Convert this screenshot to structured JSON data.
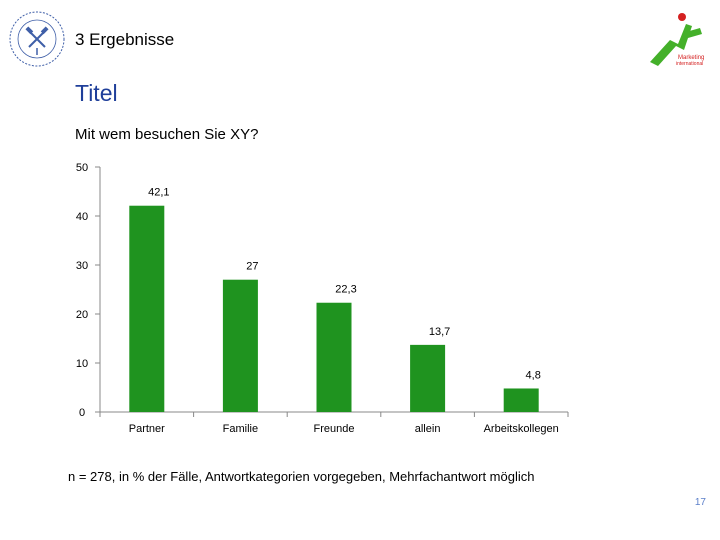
{
  "header": {
    "section_title": "3 Ergebnisse",
    "brand_logo_text": "Marketing international"
  },
  "slide": {
    "title": "Titel",
    "question": "Mit wem besuchen Sie XY?",
    "footnote": "n = 278, in % der Fälle, Antwortkategorien vorgegeben, Mehrfachantwort möglich",
    "page_number": "17"
  },
  "colors": {
    "bar": "#1f931f",
    "title": "#1f3f9a",
    "seal": "#3f5fa8",
    "logo_green": "#44b02a",
    "logo_red": "#d42020"
  },
  "chart_data": {
    "type": "bar",
    "title": "Mit wem besuchen Sie XY?",
    "categories": [
      "Partner",
      "Familie",
      "Freunde",
      "allein",
      "Arbeitskollegen"
    ],
    "values": [
      42.1,
      27,
      22.3,
      13.7,
      4.8
    ],
    "value_labels": [
      "42,1",
      "27",
      "22,3",
      "13,7",
      "4,8"
    ],
    "y_ticks": [
      0,
      10,
      20,
      30,
      40,
      50
    ],
    "ylim": [
      0,
      50
    ],
    "xlabel": "",
    "ylabel": "",
    "grid": false,
    "legend": "none"
  }
}
